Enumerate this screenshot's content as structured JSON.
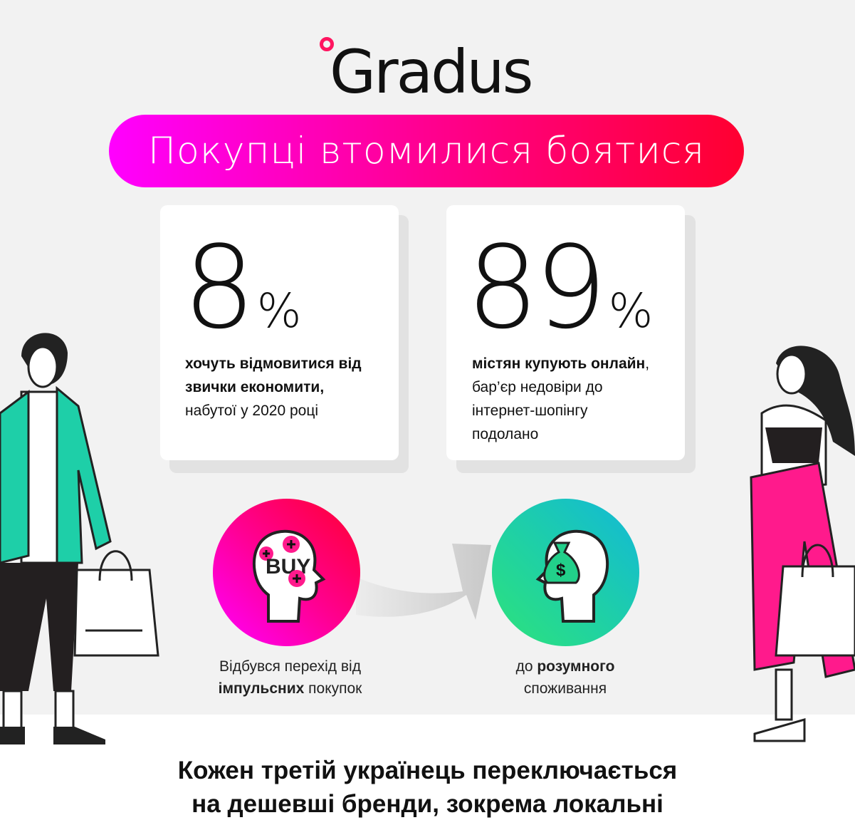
{
  "logo": {
    "text": "Gradus",
    "accent": "#ff1560"
  },
  "banner": {
    "title": "Покупці втомилися боятися",
    "gradient": [
      "#ff00ff",
      "#ff0030"
    ]
  },
  "stats": [
    {
      "value": "8",
      "unit": "%",
      "bold": "хочуть відмовитися від звички економити,",
      "rest": "набутої у 2020 році"
    },
    {
      "value": "89",
      "unit": "%",
      "bold": "містян купують онлайн",
      "comma": ",",
      "rest": "бар’єр недовіри до інтернет-шопінгу подолано"
    }
  ],
  "transition": {
    "from": {
      "icon": "head-buy-icon",
      "buy_text": "BUY",
      "pre": "Відбувся перехід від",
      "bold": "імпульсних",
      "post": "покупок"
    },
    "to": {
      "icon": "head-money-bag-icon",
      "pre": "до",
      "bold": "розумного",
      "post": "споживання"
    }
  },
  "footer": {
    "line1": "Кожен третій українець переключається",
    "line2": "на дешевші бренди, зокрема локальні"
  },
  "colors": {
    "background": "#f2f2f2",
    "teal": "#1ecfa8",
    "pink": "#ff1a8c"
  }
}
